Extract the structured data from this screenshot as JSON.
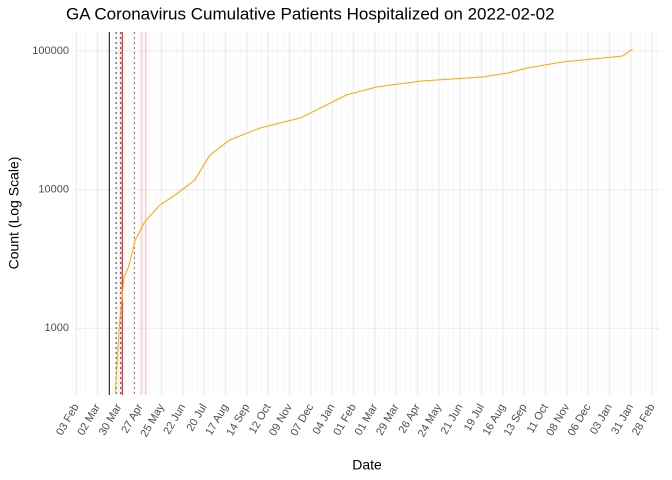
{
  "chart_data": {
    "type": "line",
    "title": "GA Coronavirus Cumulative Patients Hospitalized on 2022-02-02",
    "x_label": "Date",
    "y_label": "Count (Log Scale)",
    "log_y": true,
    "grid": true,
    "xlim": [
      "2020-02-01",
      "2022-03-10"
    ],
    "ylim": [
      330,
      137000
    ],
    "yticks": [
      1000,
      10000,
      100000
    ],
    "xticks": [
      {
        "value": "2020-02-03",
        "label": "03 Feb"
      },
      {
        "value": "2020-03-02",
        "label": "02 Mar"
      },
      {
        "value": "2020-03-30",
        "label": "30 Mar"
      },
      {
        "value": "2020-04-27",
        "label": "27 Apr"
      },
      {
        "value": "2020-05-25",
        "label": "25 May"
      },
      {
        "value": "2020-06-22",
        "label": "22 Jun"
      },
      {
        "value": "2020-07-20",
        "label": "20 Jul"
      },
      {
        "value": "2020-08-17",
        "label": "17 Aug"
      },
      {
        "value": "2020-09-14",
        "label": "14 Sep"
      },
      {
        "value": "2020-10-12",
        "label": "12 Oct"
      },
      {
        "value": "2020-11-09",
        "label": "09 Nov"
      },
      {
        "value": "2020-12-07",
        "label": "07 Dec"
      },
      {
        "value": "2021-01-04",
        "label": "04 Jan"
      },
      {
        "value": "2021-02-01",
        "label": "01 Feb"
      },
      {
        "value": "2021-03-01",
        "label": "01 Mar"
      },
      {
        "value": "2021-03-29",
        "label": "29 Mar"
      },
      {
        "value": "2021-04-26",
        "label": "26 Apr"
      },
      {
        "value": "2021-05-24",
        "label": "24 May"
      },
      {
        "value": "2021-06-21",
        "label": "21 Jun"
      },
      {
        "value": "2021-07-19",
        "label": "19 Jul"
      },
      {
        "value": "2021-08-16",
        "label": "16 Aug"
      },
      {
        "value": "2021-09-13",
        "label": "13 Sep"
      },
      {
        "value": "2021-10-11",
        "label": "11 Oct"
      },
      {
        "value": "2021-11-08",
        "label": "08 Nov"
      },
      {
        "value": "2021-12-06",
        "label": "06 Dec"
      },
      {
        "value": "2022-01-03",
        "label": "03 Jan"
      },
      {
        "value": "2022-01-31",
        "label": "31 Jan"
      },
      {
        "value": "2022-02-28",
        "label": "28 Feb"
      }
    ],
    "vlines": [
      {
        "x": "2020-03-17",
        "color": "#000000",
        "dashed": false
      },
      {
        "x": "2020-03-26",
        "color": "#333333",
        "dashed": true
      },
      {
        "x": "2020-04-01",
        "color": "#cc0000",
        "dashed": true
      },
      {
        "x": "2020-04-03",
        "color": "#cc0000",
        "dashed": false
      },
      {
        "x": "2020-04-19",
        "color": "#e05050",
        "dashed": true
      },
      {
        "x": "2020-04-29",
        "color": "#f4b8b8",
        "dashed": false
      },
      {
        "x": "2020-05-04",
        "color": "#f4b8b8",
        "dashed": false
      }
    ],
    "x": [
      "2020-03-25",
      "2020-03-30",
      "2020-04-05",
      "2020-04-12",
      "2020-04-20",
      "2020-05-02",
      "2020-05-22",
      "2020-06-11",
      "2020-07-07",
      "2020-07-27",
      "2020-08-22",
      "2020-10-01",
      "2020-11-23",
      "2020-12-19",
      "2021-01-22",
      "2021-03-03",
      "2021-05-01",
      "2021-07-20",
      "2021-08-22",
      "2021-09-17",
      "2021-11-02",
      "2021-12-25",
      "2022-01-20",
      "2022-02-02"
    ],
    "series": [
      {
        "name": "Hospitalized",
        "color": "#ffa500",
        "values": [
          350,
          1000,
          2300,
          2850,
          4300,
          5800,
          7700,
          9100,
          11700,
          17700,
          22800,
          27800,
          32900,
          38700,
          48100,
          55000,
          60700,
          64900,
          69400,
          75400,
          83200,
          89000,
          92000,
          103000
        ]
      }
    ]
  }
}
